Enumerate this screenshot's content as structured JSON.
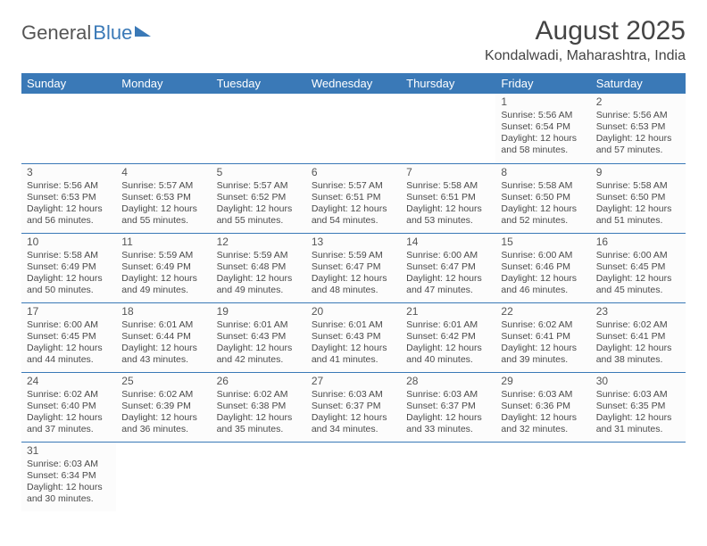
{
  "brand": {
    "part1": "General",
    "part2": "Blue"
  },
  "title": "August 2025",
  "location": "Kondalwadi, Maharashtra, India",
  "colors": {
    "header_bg": "#3a79b7",
    "header_text": "#ffffff",
    "border": "#3a79b7",
    "text": "#4a4a4a",
    "background": "#ffffff"
  },
  "typography": {
    "title_fontsize": 30,
    "location_fontsize": 16,
    "dayheader_fontsize": 13,
    "cell_fontsize": 10.5
  },
  "layout": {
    "columns": 7,
    "rows": 6,
    "first_day_index": 5
  },
  "day_headers": [
    "Sunday",
    "Monday",
    "Tuesday",
    "Wednesday",
    "Thursday",
    "Friday",
    "Saturday"
  ],
  "days": [
    {
      "n": "1",
      "sunrise": "Sunrise: 5:56 AM",
      "sunset": "Sunset: 6:54 PM",
      "daylight": "Daylight: 12 hours and 58 minutes."
    },
    {
      "n": "2",
      "sunrise": "Sunrise: 5:56 AM",
      "sunset": "Sunset: 6:53 PM",
      "daylight": "Daylight: 12 hours and 57 minutes."
    },
    {
      "n": "3",
      "sunrise": "Sunrise: 5:56 AM",
      "sunset": "Sunset: 6:53 PM",
      "daylight": "Daylight: 12 hours and 56 minutes."
    },
    {
      "n": "4",
      "sunrise": "Sunrise: 5:57 AM",
      "sunset": "Sunset: 6:53 PM",
      "daylight": "Daylight: 12 hours and 55 minutes."
    },
    {
      "n": "5",
      "sunrise": "Sunrise: 5:57 AM",
      "sunset": "Sunset: 6:52 PM",
      "daylight": "Daylight: 12 hours and 55 minutes."
    },
    {
      "n": "6",
      "sunrise": "Sunrise: 5:57 AM",
      "sunset": "Sunset: 6:51 PM",
      "daylight": "Daylight: 12 hours and 54 minutes."
    },
    {
      "n": "7",
      "sunrise": "Sunrise: 5:58 AM",
      "sunset": "Sunset: 6:51 PM",
      "daylight": "Daylight: 12 hours and 53 minutes."
    },
    {
      "n": "8",
      "sunrise": "Sunrise: 5:58 AM",
      "sunset": "Sunset: 6:50 PM",
      "daylight": "Daylight: 12 hours and 52 minutes."
    },
    {
      "n": "9",
      "sunrise": "Sunrise: 5:58 AM",
      "sunset": "Sunset: 6:50 PM",
      "daylight": "Daylight: 12 hours and 51 minutes."
    },
    {
      "n": "10",
      "sunrise": "Sunrise: 5:58 AM",
      "sunset": "Sunset: 6:49 PM",
      "daylight": "Daylight: 12 hours and 50 minutes."
    },
    {
      "n": "11",
      "sunrise": "Sunrise: 5:59 AM",
      "sunset": "Sunset: 6:49 PM",
      "daylight": "Daylight: 12 hours and 49 minutes."
    },
    {
      "n": "12",
      "sunrise": "Sunrise: 5:59 AM",
      "sunset": "Sunset: 6:48 PM",
      "daylight": "Daylight: 12 hours and 49 minutes."
    },
    {
      "n": "13",
      "sunrise": "Sunrise: 5:59 AM",
      "sunset": "Sunset: 6:47 PM",
      "daylight": "Daylight: 12 hours and 48 minutes."
    },
    {
      "n": "14",
      "sunrise": "Sunrise: 6:00 AM",
      "sunset": "Sunset: 6:47 PM",
      "daylight": "Daylight: 12 hours and 47 minutes."
    },
    {
      "n": "15",
      "sunrise": "Sunrise: 6:00 AM",
      "sunset": "Sunset: 6:46 PM",
      "daylight": "Daylight: 12 hours and 46 minutes."
    },
    {
      "n": "16",
      "sunrise": "Sunrise: 6:00 AM",
      "sunset": "Sunset: 6:45 PM",
      "daylight": "Daylight: 12 hours and 45 minutes."
    },
    {
      "n": "17",
      "sunrise": "Sunrise: 6:00 AM",
      "sunset": "Sunset: 6:45 PM",
      "daylight": "Daylight: 12 hours and 44 minutes."
    },
    {
      "n": "18",
      "sunrise": "Sunrise: 6:01 AM",
      "sunset": "Sunset: 6:44 PM",
      "daylight": "Daylight: 12 hours and 43 minutes."
    },
    {
      "n": "19",
      "sunrise": "Sunrise: 6:01 AM",
      "sunset": "Sunset: 6:43 PM",
      "daylight": "Daylight: 12 hours and 42 minutes."
    },
    {
      "n": "20",
      "sunrise": "Sunrise: 6:01 AM",
      "sunset": "Sunset: 6:43 PM",
      "daylight": "Daylight: 12 hours and 41 minutes."
    },
    {
      "n": "21",
      "sunrise": "Sunrise: 6:01 AM",
      "sunset": "Sunset: 6:42 PM",
      "daylight": "Daylight: 12 hours and 40 minutes."
    },
    {
      "n": "22",
      "sunrise": "Sunrise: 6:02 AM",
      "sunset": "Sunset: 6:41 PM",
      "daylight": "Daylight: 12 hours and 39 minutes."
    },
    {
      "n": "23",
      "sunrise": "Sunrise: 6:02 AM",
      "sunset": "Sunset: 6:41 PM",
      "daylight": "Daylight: 12 hours and 38 minutes."
    },
    {
      "n": "24",
      "sunrise": "Sunrise: 6:02 AM",
      "sunset": "Sunset: 6:40 PM",
      "daylight": "Daylight: 12 hours and 37 minutes."
    },
    {
      "n": "25",
      "sunrise": "Sunrise: 6:02 AM",
      "sunset": "Sunset: 6:39 PM",
      "daylight": "Daylight: 12 hours and 36 minutes."
    },
    {
      "n": "26",
      "sunrise": "Sunrise: 6:02 AM",
      "sunset": "Sunset: 6:38 PM",
      "daylight": "Daylight: 12 hours and 35 minutes."
    },
    {
      "n": "27",
      "sunrise": "Sunrise: 6:03 AM",
      "sunset": "Sunset: 6:37 PM",
      "daylight": "Daylight: 12 hours and 34 minutes."
    },
    {
      "n": "28",
      "sunrise": "Sunrise: 6:03 AM",
      "sunset": "Sunset: 6:37 PM",
      "daylight": "Daylight: 12 hours and 33 minutes."
    },
    {
      "n": "29",
      "sunrise": "Sunrise: 6:03 AM",
      "sunset": "Sunset: 6:36 PM",
      "daylight": "Daylight: 12 hours and 32 minutes."
    },
    {
      "n": "30",
      "sunrise": "Sunrise: 6:03 AM",
      "sunset": "Sunset: 6:35 PM",
      "daylight": "Daylight: 12 hours and 31 minutes."
    },
    {
      "n": "31",
      "sunrise": "Sunrise: 6:03 AM",
      "sunset": "Sunset: 6:34 PM",
      "daylight": "Daylight: 12 hours and 30 minutes."
    }
  ]
}
